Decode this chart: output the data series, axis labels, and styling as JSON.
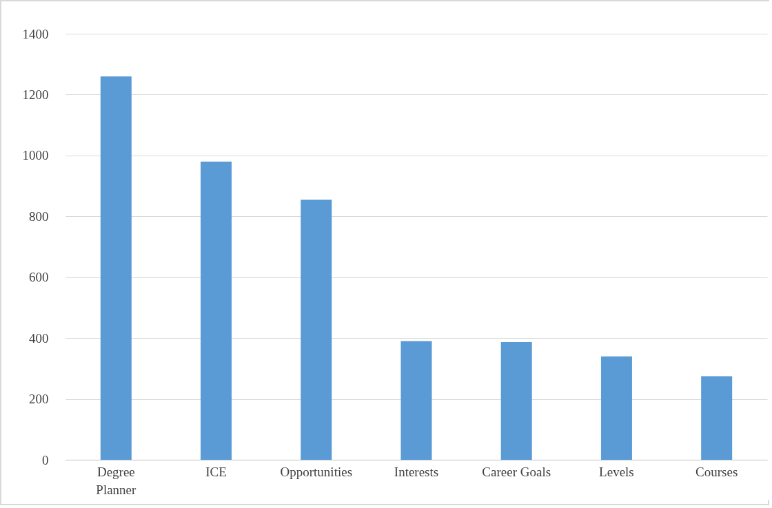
{
  "chart_data": {
    "type": "bar",
    "categories": [
      "Degree Planner",
      "ICE",
      "Opportunities",
      "Interests",
      "Career Goals",
      "Levels",
      "Courses"
    ],
    "values": [
      1260,
      980,
      855,
      390,
      387,
      340,
      275
    ],
    "color": "#5b9bd5",
    "ylim": [
      0,
      1400
    ],
    "yticks": [
      0,
      200,
      400,
      600,
      800,
      1000,
      1200,
      1400
    ],
    "grid": "y"
  }
}
